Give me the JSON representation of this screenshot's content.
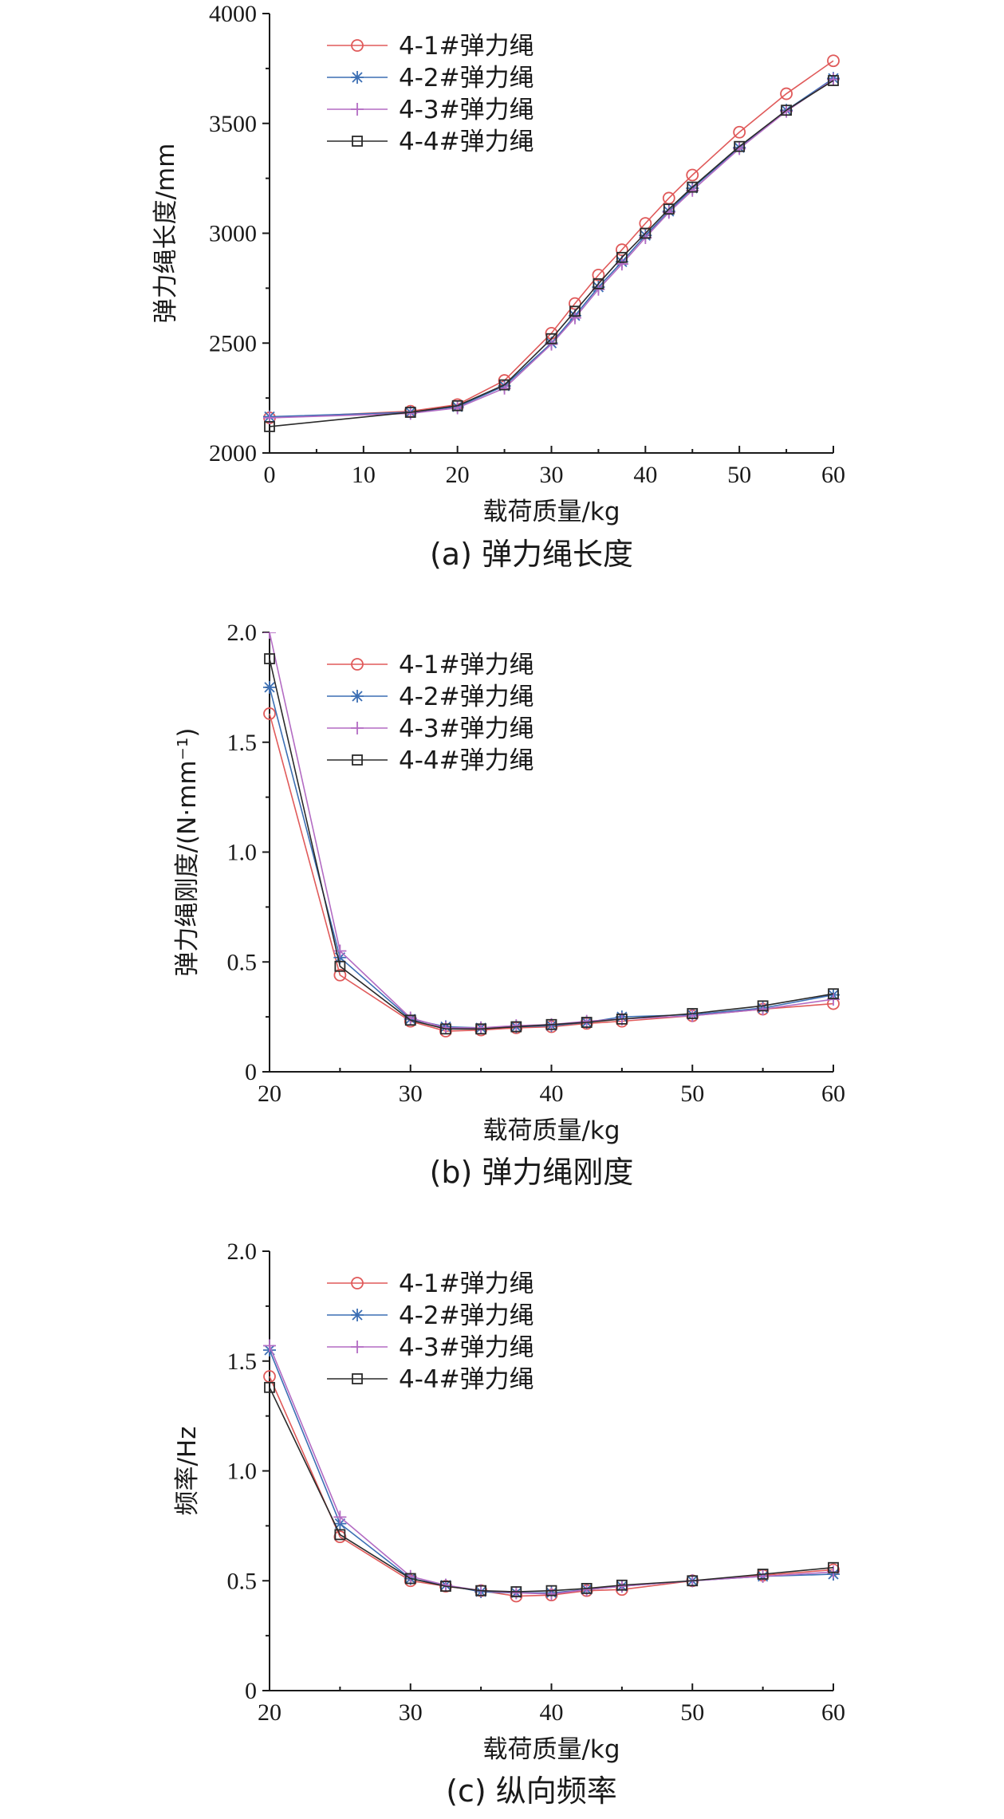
{
  "chart_data": [
    {
      "type": "line",
      "xlabel": "载荷质量/kg",
      "ylabel": "弹力绳长度/mm",
      "caption": "(a)  弹力绳长度",
      "xlim": [
        0,
        60
      ],
      "ylim": [
        2000,
        4000
      ],
      "xticks": [
        "0",
        "10",
        "20",
        "30",
        "40",
        "50",
        "60"
      ],
      "yticks": [
        "2000",
        "2500",
        "3000",
        "3500",
        "4000"
      ],
      "legend_position": "top-left",
      "grid": false,
      "x": [
        0,
        15,
        20,
        25,
        30,
        32.5,
        35,
        37.5,
        40,
        42.5,
        45,
        50,
        55,
        60
      ],
      "series": [
        {
          "name": "4-1#弹力绳",
          "color": "#e05a5a",
          "marker": "circle",
          "values": [
            2160,
            2190,
            2220,
            2330,
            2545,
            2680,
            2810,
            2925,
            3045,
            3160,
            3265,
            3460,
            3635,
            3785
          ]
        },
        {
          "name": "4-2#弹力绳",
          "color": "#3c6fb4",
          "marker": "asterisk",
          "values": [
            2165,
            2185,
            2210,
            2305,
            2500,
            2625,
            2755,
            2870,
            2990,
            3100,
            3205,
            3390,
            3560,
            3705
          ]
        },
        {
          "name": "4-3#弹力绳",
          "color": "#b36cc3",
          "marker": "plus",
          "values": [
            2160,
            2180,
            2205,
            2295,
            2495,
            2615,
            2745,
            2860,
            2980,
            3095,
            3195,
            3385,
            3555,
            3700
          ]
        },
        {
          "name": "4-4#弹力绳",
          "color": "#2a2a2a",
          "marker": "square",
          "values": [
            2120,
            2185,
            2215,
            2310,
            2520,
            2645,
            2770,
            2890,
            3000,
            3110,
            3210,
            3395,
            3560,
            3695
          ]
        }
      ]
    },
    {
      "type": "line",
      "xlabel": "载荷质量/kg",
      "ylabel": "弹力绳刚度/(N·mm⁻¹)",
      "caption": "(b)  弹力绳刚度",
      "xlim": [
        20,
        60
      ],
      "ylim": [
        0,
        2.0
      ],
      "xticks": [
        "20",
        "30",
        "40",
        "50",
        "60"
      ],
      "yticks": [
        "0",
        "0.5",
        "1.0",
        "1.5",
        "2.0"
      ],
      "legend_position": "top-center",
      "grid": false,
      "x": [
        20,
        25,
        30,
        32.5,
        35,
        37.5,
        40,
        42.5,
        45,
        50,
        55,
        60
      ],
      "series": [
        {
          "name": "4-1#弹力绳",
          "color": "#e05a5a",
          "marker": "circle",
          "values": [
            1.63,
            0.44,
            0.23,
            0.185,
            0.19,
            0.2,
            0.205,
            0.22,
            0.23,
            0.255,
            0.285,
            0.31
          ]
        },
        {
          "name": "4-2#弹力绳",
          "color": "#3c6fb4",
          "marker": "asterisk",
          "values": [
            1.75,
            0.52,
            0.24,
            0.205,
            0.2,
            0.205,
            0.21,
            0.225,
            0.25,
            0.26,
            0.29,
            0.35
          ]
        },
        {
          "name": "4-3#弹力绳",
          "color": "#b36cc3",
          "marker": "plus",
          "values": [
            2.0,
            0.55,
            0.245,
            0.2,
            0.2,
            0.21,
            0.215,
            0.23,
            0.24,
            0.255,
            0.285,
            0.33
          ]
        },
        {
          "name": "4-4#弹力绳",
          "color": "#2a2a2a",
          "marker": "square",
          "values": [
            1.88,
            0.48,
            0.235,
            0.195,
            0.195,
            0.205,
            0.215,
            0.225,
            0.24,
            0.265,
            0.3,
            0.355
          ]
        }
      ]
    },
    {
      "type": "line",
      "xlabel": "载荷质量/kg",
      "ylabel": "频率/Hz",
      "caption": "(c)  纵向频率",
      "xlim": [
        20,
        60
      ],
      "ylim": [
        0,
        2.0
      ],
      "xticks": [
        "20",
        "30",
        "40",
        "50",
        "60"
      ],
      "yticks": [
        "0",
        "0.5",
        "1.0",
        "1.5",
        "2.0"
      ],
      "legend_position": "top-center",
      "grid": false,
      "x": [
        20,
        25,
        30,
        32.5,
        35,
        37.5,
        40,
        42.5,
        45,
        50,
        55,
        60
      ],
      "series": [
        {
          "name": "4-1#弹力绳",
          "color": "#e05a5a",
          "marker": "circle",
          "values": [
            1.43,
            0.7,
            0.5,
            0.475,
            0.455,
            0.43,
            0.435,
            0.455,
            0.46,
            0.5,
            0.525,
            0.55
          ]
        },
        {
          "name": "4-2#弹力绳",
          "color": "#3c6fb4",
          "marker": "asterisk",
          "values": [
            1.55,
            0.76,
            0.51,
            0.48,
            0.45,
            0.445,
            0.445,
            0.46,
            0.475,
            0.5,
            0.52,
            0.53
          ]
        },
        {
          "name": "4-3#弹力绳",
          "color": "#b36cc3",
          "marker": "plus",
          "values": [
            1.57,
            0.79,
            0.52,
            0.48,
            0.455,
            0.445,
            0.44,
            0.46,
            0.475,
            0.5,
            0.52,
            0.54
          ]
        },
        {
          "name": "4-4#弹力绳",
          "color": "#2a2a2a",
          "marker": "square",
          "values": [
            1.38,
            0.71,
            0.51,
            0.475,
            0.455,
            0.45,
            0.455,
            0.465,
            0.48,
            0.5,
            0.53,
            0.56
          ]
        }
      ]
    }
  ]
}
